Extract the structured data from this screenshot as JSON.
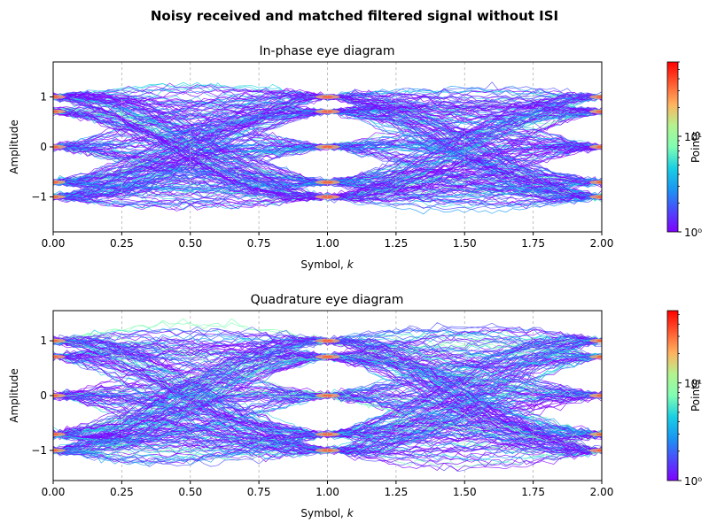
{
  "figure": {
    "suptitle": "Noisy received and matched filtered signal without ISI"
  },
  "chart_data": [
    {
      "type": "heatmap",
      "title": "In-phase eye diagram",
      "xlabel_main": "Symbol, ",
      "xlabel_var": "k",
      "ylabel": "Amplitude",
      "xlim": [
        0,
        2
      ],
      "ylim": [
        -1.7,
        1.7
      ],
      "xticks": [
        0,
        0.25,
        0.5,
        0.75,
        1.0,
        1.25,
        1.5,
        1.75,
        2.0
      ],
      "xtick_labels": [
        "0.00",
        "0.25",
        "0.50",
        "0.75",
        "1.00",
        "1.25",
        "1.50",
        "1.75",
        "2.00"
      ],
      "yticks": [
        1,
        0,
        -1
      ],
      "ytick_labels": [
        "1",
        "0",
        "−1"
      ],
      "grid": "vertical dashed at x ticks",
      "levels": [
        -1,
        -0.707,
        0,
        0.707,
        1
      ],
      "colorbar": {
        "label": "Points",
        "scale": "log",
        "range": [
          1,
          60
        ],
        "tick_values": [
          1,
          10
        ],
        "tick_labels": [
          "10⁰",
          "10¹"
        ],
        "colormap": "rainbow"
      }
    },
    {
      "type": "heatmap",
      "title": "Quadrature eye diagram",
      "xlabel_main": "Symbol, ",
      "xlabel_var": "k",
      "ylabel": "Amplitude",
      "xlim": [
        0,
        2
      ],
      "ylim": [
        -1.55,
        1.55
      ],
      "xticks": [
        0,
        0.25,
        0.5,
        0.75,
        1.0,
        1.25,
        1.5,
        1.75,
        2.0
      ],
      "xtick_labels": [
        "0.00",
        "0.25",
        "0.50",
        "0.75",
        "1.00",
        "1.25",
        "1.50",
        "1.75",
        "2.00"
      ],
      "yticks": [
        1,
        0,
        -1
      ],
      "ytick_labels": [
        "1",
        "0",
        "−1"
      ],
      "grid": "vertical dashed at x ticks",
      "levels": [
        -1,
        -0.707,
        0,
        0.707,
        1
      ],
      "colorbar": {
        "label": "Points",
        "scale": "log",
        "range": [
          1,
          55
        ],
        "tick_values": [
          1,
          10
        ],
        "tick_labels": [
          "10⁰",
          "10¹"
        ],
        "colormap": "rainbow"
      }
    }
  ]
}
